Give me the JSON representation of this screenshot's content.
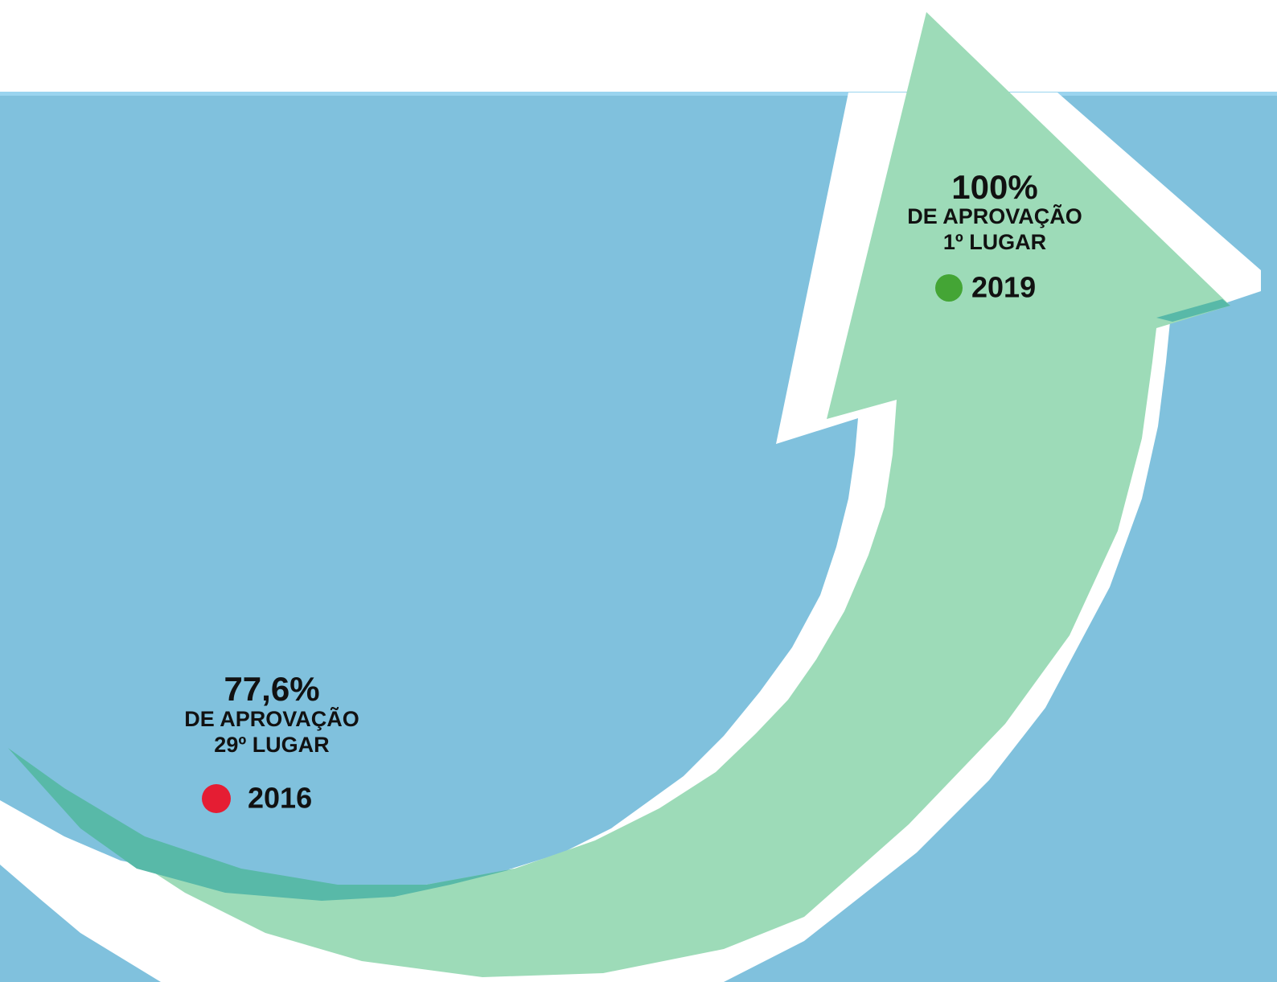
{
  "milestones": [
    {
      "value": "77,6%",
      "lines": [
        "DE APROVAÇÃO",
        "29º LUGAR"
      ],
      "year": "2016"
    },
    {
      "value": "100%",
      "lines": [
        "DE APROVAÇÃO",
        "1º LUGAR"
      ],
      "year": "2019"
    }
  ]
}
